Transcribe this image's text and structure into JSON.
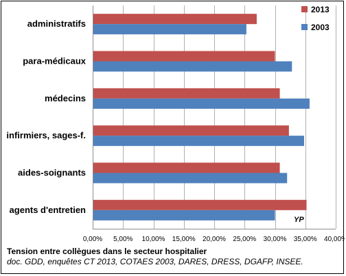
{
  "chart_data": {
    "type": "bar",
    "orientation": "horizontal",
    "categories": [
      "administratifs",
      "para-médicaux",
      "médecins",
      "infirmiers, sages-f.",
      "aides-soignants",
      "agents d'entretien"
    ],
    "series": [
      {
        "name": "2013",
        "color": "#c0504d",
        "values": [
          27.0,
          30.0,
          30.8,
          32.3,
          30.8,
          35.2
        ]
      },
      {
        "name": "2003",
        "color": "#4f81bd",
        "values": [
          25.3,
          32.8,
          35.7,
          34.8,
          32.0,
          30.0
        ]
      }
    ],
    "xlim": [
      0,
      40
    ],
    "ticks": [
      "0,00%",
      "5,00%",
      "10,00%",
      "15,00%",
      "20,00%",
      "25,00%",
      "30,00%",
      "35,00%",
      "40,00%"
    ],
    "grid": true,
    "legend_position": "top-right",
    "annotation": "YP"
  },
  "caption": {
    "title": "Tension entre collègues dans le secteur hospitalier",
    "source": "doc. GDD, enquêtes CT 2013, COTAES 2003, DARES, DRESS, DGAFP, INSEE."
  }
}
